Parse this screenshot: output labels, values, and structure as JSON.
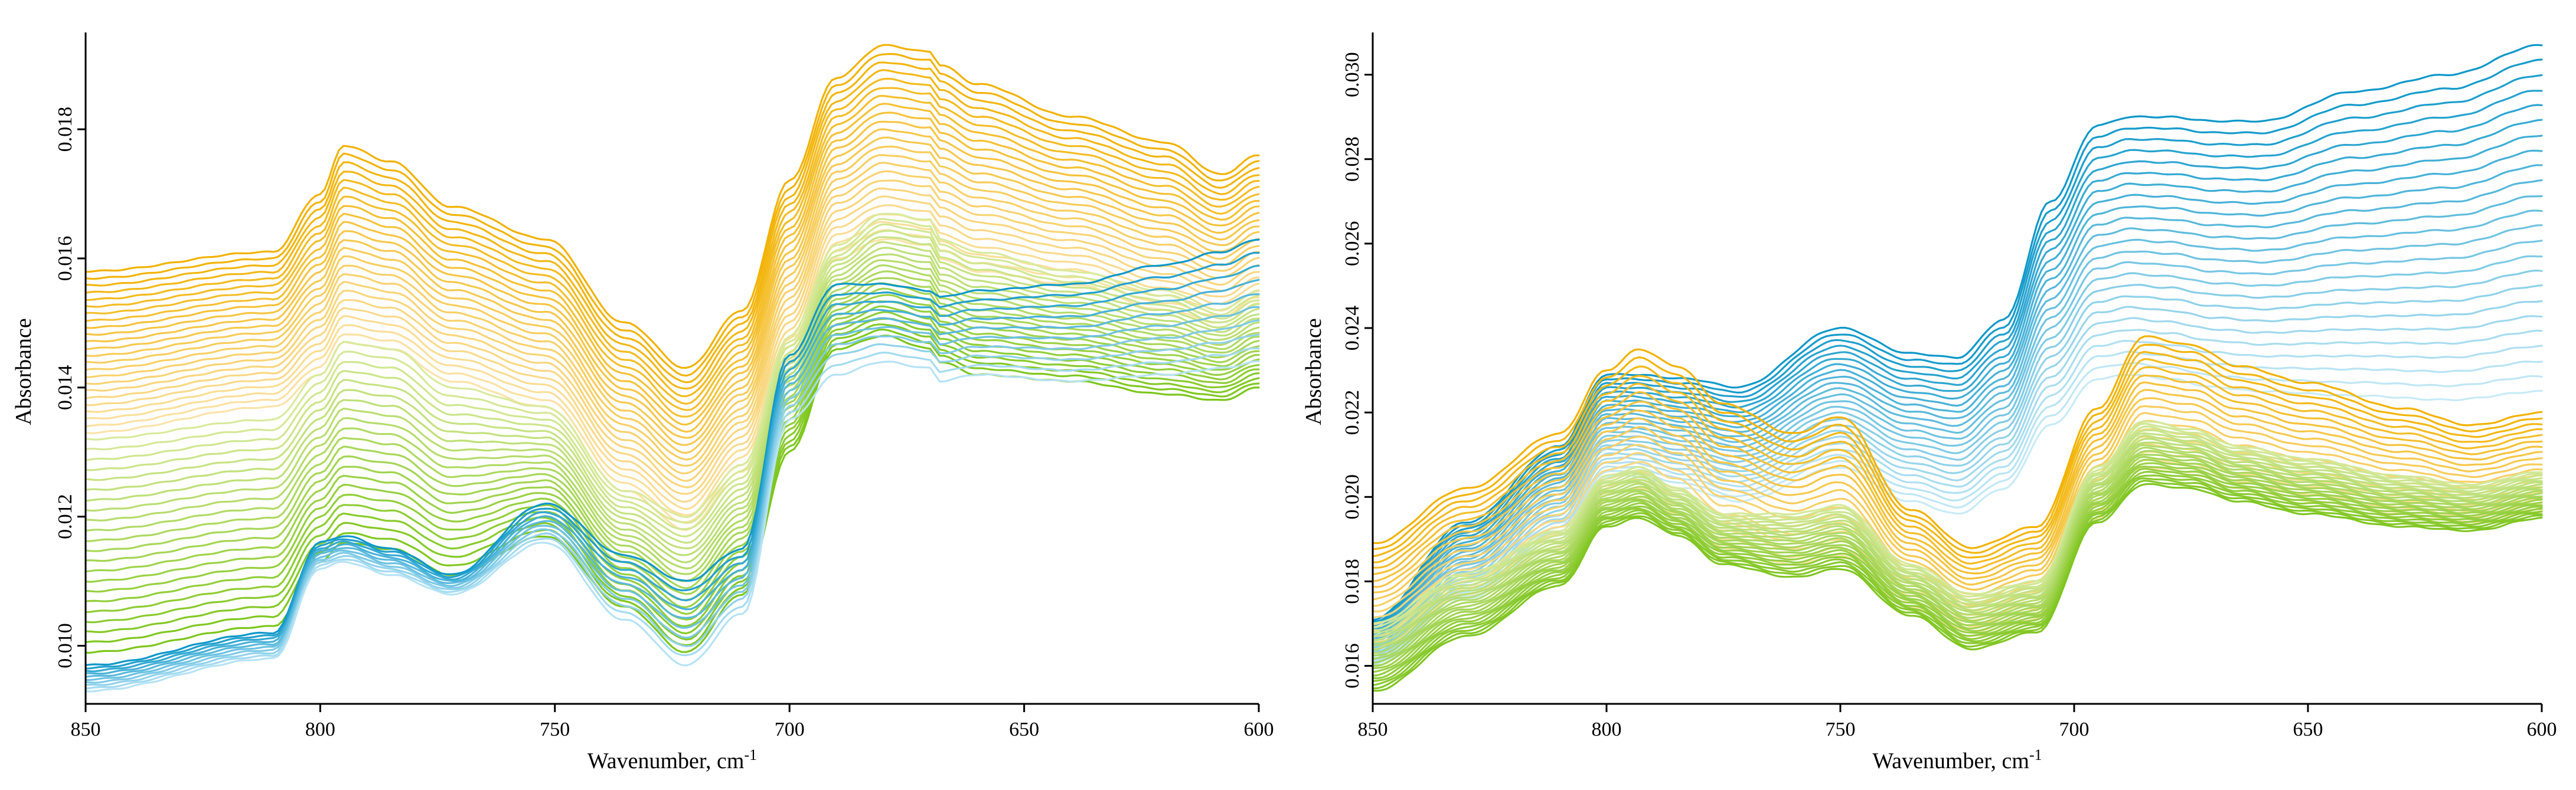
{
  "chart_data": [
    {
      "type": "line",
      "title": "",
      "xlabel": "Wavenumber, cm",
      "xlabel_sup": "-1",
      "ylabel": "Absorbance",
      "xlim": [
        850,
        600
      ],
      "ylim": [
        0.0091,
        0.0195
      ],
      "x_ticks": [
        {
          "value": 850,
          "label": "850"
        },
        {
          "value": 800,
          "label": "800"
        },
        {
          "value": 750,
          "label": "750"
        },
        {
          "value": 700,
          "label": "700"
        },
        {
          "value": 650,
          "label": "650"
        },
        {
          "value": 600,
          "label": "600"
        }
      ],
      "y_ticks": [
        {
          "value": 0.01,
          "label": "0.010"
        },
        {
          "value": 0.012,
          "label": "0.012"
        },
        {
          "value": 0.014,
          "label": "0.014"
        },
        {
          "value": 0.016,
          "label": "0.016"
        },
        {
          "value": 0.018,
          "label": "0.018"
        }
      ],
      "series_groups": [
        {
          "name": "orange spectra",
          "color_start": "#f2b200",
          "color_end": "#fbe3a8",
          "count": 24,
          "x": [
            850,
            810,
            800,
            795,
            785,
            772,
            752,
            735,
            722,
            710,
            700,
            690,
            680,
            670,
            668,
            660,
            640,
            620,
            608,
            600
          ],
          "top_profile": [
            0.0158,
            0.0161,
            0.017,
            0.01775,
            0.0175,
            0.0168,
            0.0163,
            0.015,
            0.0143,
            0.0152,
            0.0172,
            0.0188,
            0.0193,
            0.0192,
            0.019,
            0.0187,
            0.0182,
            0.0178,
            0.0173,
            0.0176
          ],
          "bottom_profile": [
            0.0133,
            0.0137,
            0.0142,
            0.0147,
            0.0146,
            0.0141,
            0.0137,
            0.0124,
            0.0118,
            0.0127,
            0.0144,
            0.016,
            0.0163,
            0.0162,
            0.016,
            0.0158,
            0.0156,
            0.0152,
            0.015,
            0.0153
          ]
        },
        {
          "name": "green spectra",
          "color_start": "#d9ea9c",
          "color_end": "#7cc61a",
          "count": 22,
          "x": [
            850,
            810,
            800,
            795,
            785,
            772,
            752,
            735,
            722,
            710,
            700,
            690,
            680,
            670,
            668,
            660,
            640,
            620,
            608,
            600
          ],
          "top_profile": [
            0.0132,
            0.0135,
            0.0142,
            0.0147,
            0.0146,
            0.014,
            0.0137,
            0.0124,
            0.012,
            0.0128,
            0.0148,
            0.0162,
            0.0167,
            0.0166,
            0.0163,
            0.0161,
            0.0158,
            0.0155,
            0.0152,
            0.0155
          ],
          "bottom_profile": [
            0.0099,
            0.0103,
            0.0113,
            0.0116,
            0.0115,
            0.0111,
            0.0117,
            0.0106,
            0.0099,
            0.0108,
            0.013,
            0.0146,
            0.0148,
            0.0146,
            0.0144,
            0.0142,
            0.0141,
            0.0139,
            0.0138,
            0.014
          ]
        },
        {
          "name": "blue spectra",
          "color_start": "#0e98c9",
          "color_end": "#b6e3f5",
          "count": 10,
          "x": [
            850,
            810,
            800,
            795,
            785,
            772,
            752,
            735,
            722,
            710,
            700,
            690,
            680,
            670,
            668,
            660,
            640,
            620,
            608,
            600
          ],
          "top_profile": [
            0.0097,
            0.0102,
            0.0116,
            0.0117,
            0.0115,
            0.0111,
            0.0122,
            0.0114,
            0.011,
            0.0115,
            0.0145,
            0.0156,
            0.0156,
            0.0155,
            0.0154,
            0.0155,
            0.0156,
            0.0159,
            0.0161,
            0.0163
          ],
          "bottom_profile": [
            0.0093,
            0.0098,
            0.0112,
            0.0113,
            0.0111,
            0.0108,
            0.0116,
            0.0104,
            0.0097,
            0.0105,
            0.0135,
            0.0142,
            0.0144,
            0.0143,
            0.0141,
            0.0142,
            0.0141,
            0.0142,
            0.0143,
            0.0144
          ]
        }
      ]
    },
    {
      "type": "line",
      "title": "",
      "xlabel": "Wavenumber, cm",
      "xlabel_sup": "-1",
      "ylabel": "Absorbance",
      "xlim": [
        850,
        600
      ],
      "ylim": [
        0.0151,
        0.031
      ],
      "x_ticks": [
        {
          "value": 850,
          "label": "850"
        },
        {
          "value": 800,
          "label": "800"
        },
        {
          "value": 750,
          "label": "750"
        },
        {
          "value": 700,
          "label": "700"
        },
        {
          "value": 650,
          "label": "650"
        },
        {
          "value": 600,
          "label": "600"
        }
      ],
      "y_ticks": [
        {
          "value": 0.016,
          "label": "0.016"
        },
        {
          "value": 0.018,
          "label": "0.018"
        },
        {
          "value": 0.02,
          "label": "0.020"
        },
        {
          "value": 0.022,
          "label": "0.022"
        },
        {
          "value": 0.024,
          "label": "0.024"
        },
        {
          "value": 0.026,
          "label": "0.026"
        },
        {
          "value": 0.028,
          "label": "0.028"
        },
        {
          "value": 0.03,
          "label": "0.030"
        }
      ],
      "series_groups": [
        {
          "name": "blue spectra",
          "color_start": "#0e98c9",
          "color_end": "#c8ebf7",
          "count": 24,
          "x": [
            850,
            830,
            810,
            800,
            795,
            783,
            772,
            750,
            735,
            725,
            715,
            705,
            695,
            688,
            680,
            670,
            660,
            640,
            620,
            600
          ],
          "top_profile": [
            0.0171,
            0.0194,
            0.0212,
            0.0229,
            0.0229,
            0.0228,
            0.0226,
            0.024,
            0.0234,
            0.0233,
            0.0242,
            0.027,
            0.0288,
            0.029,
            0.029,
            0.0289,
            0.0289,
            0.0296,
            0.03,
            0.0307
          ],
          "bottom_profile": [
            0.016,
            0.0176,
            0.019,
            0.0205,
            0.0205,
            0.0202,
            0.0199,
            0.0207,
            0.0199,
            0.0196,
            0.0202,
            0.0217,
            0.0228,
            0.0229,
            0.0228,
            0.0226,
            0.0225,
            0.0224,
            0.0223,
            0.0225
          ]
        },
        {
          "name": "orange spectra",
          "color_start": "#f2b200",
          "color_end": "#fbe3a8",
          "count": 18,
          "x": [
            850,
            830,
            810,
            800,
            793,
            785,
            775,
            760,
            750,
            735,
            722,
            708,
            695,
            685,
            675,
            665,
            650,
            630,
            615,
            600
          ],
          "top_profile": [
            0.0189,
            0.0202,
            0.0215,
            0.023,
            0.0235,
            0.0231,
            0.0222,
            0.0215,
            0.0219,
            0.0197,
            0.0188,
            0.0193,
            0.0221,
            0.0238,
            0.0236,
            0.0231,
            0.0227,
            0.0221,
            0.0217,
            0.022
          ],
          "bottom_profile": [
            0.0164,
            0.0177,
            0.0188,
            0.0199,
            0.02,
            0.0196,
            0.0188,
            0.0184,
            0.0186,
            0.0174,
            0.0167,
            0.0171,
            0.0195,
            0.0207,
            0.0206,
            0.0202,
            0.0199,
            0.0196,
            0.0194,
            0.0197
          ]
        },
        {
          "name": "green spectra",
          "color_start": "#d3e99a",
          "color_end": "#80c621",
          "count": 22,
          "x": [
            850,
            830,
            810,
            800,
            793,
            785,
            775,
            760,
            750,
            735,
            722,
            708,
            695,
            685,
            675,
            665,
            650,
            630,
            615,
            600
          ],
          "top_profile": [
            0.017,
            0.0182,
            0.0192,
            0.0205,
            0.0207,
            0.0202,
            0.0196,
            0.0196,
            0.0198,
            0.0184,
            0.0177,
            0.018,
            0.0207,
            0.0218,
            0.0216,
            0.0212,
            0.0209,
            0.0205,
            0.0203,
            0.0206
          ],
          "bottom_profile": [
            0.0154,
            0.0167,
            0.0179,
            0.0193,
            0.0195,
            0.0191,
            0.0184,
            0.0181,
            0.0183,
            0.0172,
            0.0164,
            0.0168,
            0.0194,
            0.0203,
            0.0202,
            0.0199,
            0.0196,
            0.0193,
            0.0192,
            0.0195
          ]
        }
      ]
    }
  ]
}
